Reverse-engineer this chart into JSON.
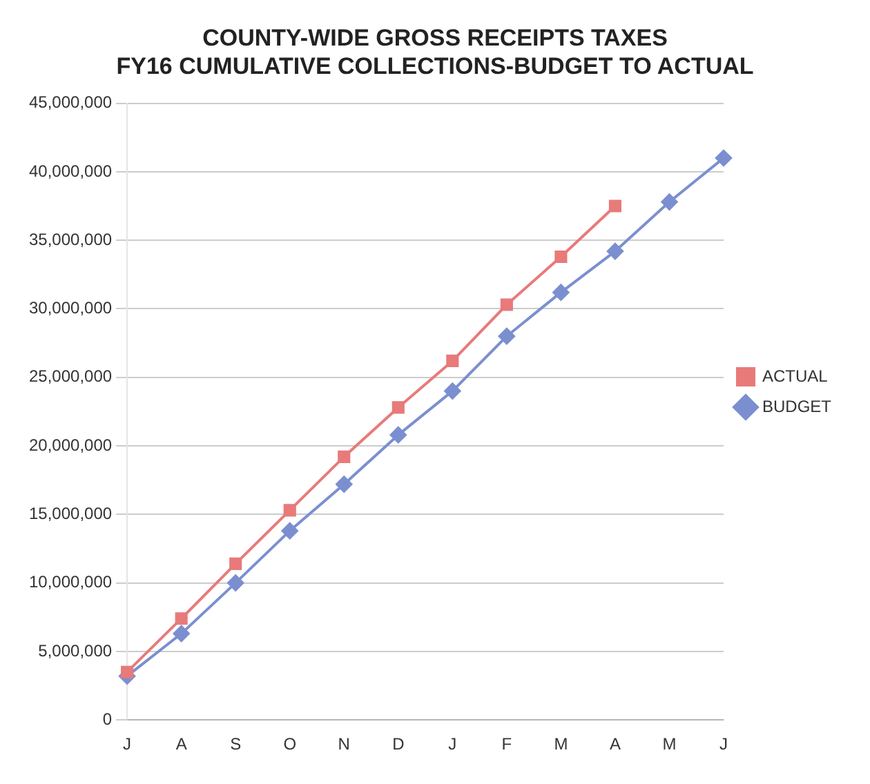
{
  "chart_data": {
    "type": "line",
    "title": [
      "COUNTY-WIDE GROSS RECEIPTS TAXES",
      "FY16 CUMULATIVE COLLECTIONS-BUDGET TO ACTUAL"
    ],
    "categories": [
      "J",
      "A",
      "S",
      "O",
      "N",
      "D",
      "J",
      "F",
      "M",
      "A",
      "M",
      "J"
    ],
    "series": [
      {
        "name": "BUDGET",
        "color": "#7b8fd0",
        "marker": "diamond",
        "values": [
          3200000,
          6300000,
          10000000,
          13800000,
          17200000,
          20800000,
          24000000,
          28000000,
          31200000,
          34200000,
          37800000,
          41000000
        ]
      },
      {
        "name": "ACTUAL",
        "color": "#e87a7a",
        "marker": "square",
        "values": [
          3500000,
          7400000,
          11400000,
          15300000,
          19200000,
          22800000,
          26200000,
          30300000,
          33800000,
          37500000,
          null,
          null
        ]
      }
    ],
    "ylim": [
      0,
      45000000
    ],
    "yticks": [
      0,
      {
        "value": 5000000,
        "label": "5,000,000"
      },
      {
        "value": 10000000,
        "label": "10,000,000"
      },
      {
        "value": 15000000,
        "label": "15,000,000"
      },
      {
        "value": 20000000,
        "label": "20,000,000"
      },
      {
        "value": 25000000,
        "label": "25,000,000"
      },
      {
        "value": 30000000,
        "label": "30,000,000"
      },
      {
        "value": 35000000,
        "label": "35,000,000"
      },
      {
        "value": 40000000,
        "label": "40,000,000"
      },
      {
        "value": 45000000,
        "label": "45,000,000"
      }
    ],
    "grid": "y",
    "legend": "right"
  }
}
